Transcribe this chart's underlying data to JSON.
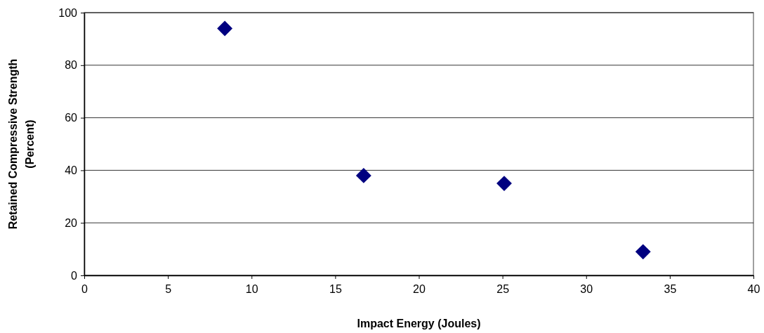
{
  "chart_data": {
    "type": "scatter",
    "xlabel": "Impact Energy (Joules)",
    "ylabel": "Retained Compressive Strength (Percent)",
    "x": [
      8.4,
      16.7,
      25.1,
      33.4
    ],
    "series": [
      {
        "color": "#000080",
        "values": [
          94,
          38,
          35,
          9
        ]
      }
    ],
    "xlim": [
      0,
      40
    ],
    "xticks": [
      0,
      5,
      10,
      15,
      20,
      25,
      30,
      35,
      40
    ],
    "ylim": [
      0,
      100
    ],
    "yticks": [
      0,
      20,
      40,
      60,
      80,
      100
    ],
    "grid": "y",
    "marker": "diamond"
  }
}
